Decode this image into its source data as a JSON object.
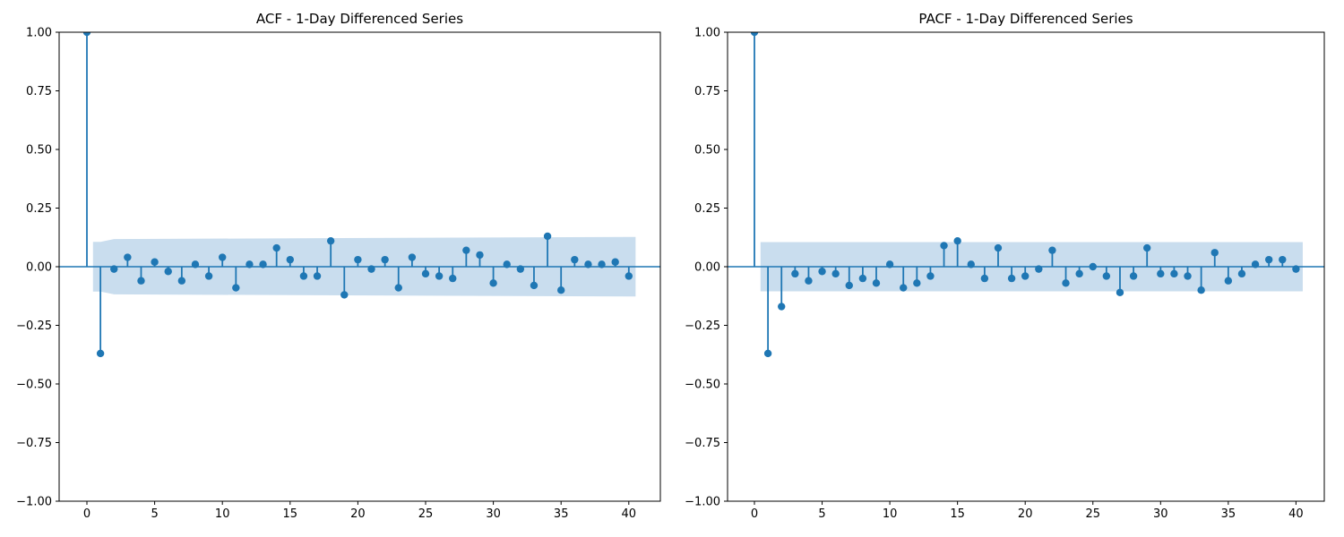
{
  "figure": {
    "background": "#ffffff"
  },
  "colors": {
    "stem": "#1f77b4",
    "marker": "#1f77b4",
    "conf_band": "#c9ddee",
    "spine": "#000000",
    "tick_label": "#000000"
  },
  "chart_data": [
    {
      "type": "stem",
      "title": "ACF - 1-Day Differenced Series",
      "xlabel": "",
      "ylabel": "",
      "ylim": [
        -1.0,
        1.0
      ],
      "xticks": [
        0,
        5,
        10,
        15,
        20,
        25,
        30,
        35,
        40
      ],
      "yticks": [
        1.0,
        0.75,
        0.5,
        0.25,
        0.0,
        -0.25,
        -0.5,
        -0.75,
        -1.0
      ],
      "ytick_labels": [
        "1.00",
        "0.75",
        "0.50",
        "0.25",
        "0.00",
        "−0.25",
        "−0.50",
        "−0.75",
        "−1.00"
      ],
      "lags": [
        0,
        1,
        2,
        3,
        4,
        5,
        6,
        7,
        8,
        9,
        10,
        11,
        12,
        13,
        14,
        15,
        16,
        17,
        18,
        19,
        20,
        21,
        22,
        23,
        24,
        25,
        26,
        27,
        28,
        29,
        30,
        31,
        32,
        33,
        34,
        35,
        36,
        37,
        38,
        39,
        40
      ],
      "values": [
        1.0,
        -0.37,
        -0.01,
        0.04,
        -0.06,
        0.02,
        -0.02,
        -0.06,
        0.01,
        -0.04,
        0.04,
        -0.09,
        0.01,
        0.01,
        0.08,
        0.03,
        -0.04,
        -0.04,
        0.11,
        -0.12,
        0.03,
        -0.01,
        0.03,
        -0.09,
        0.04,
        -0.03,
        -0.04,
        -0.05,
        0.07,
        0.05,
        -0.07,
        0.01,
        -0.01,
        -0.08,
        0.13,
        -0.1,
        0.03,
        0.01,
        0.01,
        0.02,
        -0.04
      ],
      "conf_band": {
        "start_lag": 0.45,
        "end_lag": 40.5,
        "half_width_lag1": 0.106,
        "half_width_lag2": 0.118,
        "half_width_lag40": 0.127
      },
      "grid": false,
      "legend": null
    },
    {
      "type": "stem",
      "title": "PACF - 1-Day Differenced Series",
      "xlabel": "",
      "ylabel": "",
      "ylim": [
        -1.0,
        1.0
      ],
      "xticks": [
        0,
        5,
        10,
        15,
        20,
        25,
        30,
        35,
        40
      ],
      "yticks": [
        1.0,
        0.75,
        0.5,
        0.25,
        0.0,
        -0.25,
        -0.5,
        -0.75,
        -1.0
      ],
      "ytick_labels": [
        "1.00",
        "0.75",
        "0.50",
        "0.25",
        "0.00",
        "−0.25",
        "−0.50",
        "−0.75",
        "−1.00"
      ],
      "lags": [
        0,
        1,
        2,
        3,
        4,
        5,
        6,
        7,
        8,
        9,
        10,
        11,
        12,
        13,
        14,
        15,
        16,
        17,
        18,
        19,
        20,
        21,
        22,
        23,
        24,
        25,
        26,
        27,
        28,
        29,
        30,
        31,
        32,
        33,
        34,
        35,
        36,
        37,
        38,
        39,
        40
      ],
      "values": [
        1.0,
        -0.37,
        -0.17,
        -0.03,
        -0.06,
        -0.02,
        -0.03,
        -0.08,
        -0.05,
        -0.07,
        0.01,
        -0.09,
        -0.07,
        -0.04,
        0.09,
        0.11,
        0.01,
        -0.05,
        0.08,
        -0.05,
        -0.04,
        -0.01,
        0.07,
        -0.07,
        -0.03,
        0.0,
        -0.04,
        -0.11,
        -0.04,
        0.08,
        -0.03,
        -0.03,
        -0.04,
        -0.1,
        0.06,
        -0.06,
        -0.03,
        0.01,
        0.03,
        0.03,
        -0.01
      ],
      "conf_band": {
        "start_lag": 0.45,
        "end_lag": 40.5,
        "half_width_lag1": 0.105,
        "half_width_lag2": 0.105,
        "half_width_lag40": 0.105
      },
      "grid": false,
      "legend": null
    }
  ]
}
